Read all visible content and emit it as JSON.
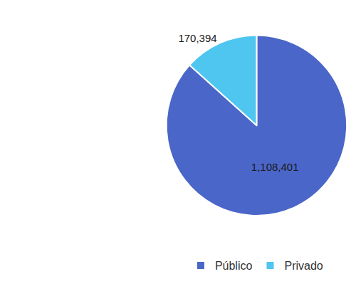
{
  "chart_data": {
    "type": "pie",
    "categories": [
      "Público",
      "Privado"
    ],
    "values": [
      1108401,
      170394
    ],
    "value_labels": [
      "1,108,401",
      "170,394"
    ],
    "colors": [
      "#4a66c8",
      "#4fc6ef"
    ],
    "data_labels": true,
    "legend": "bottom"
  }
}
